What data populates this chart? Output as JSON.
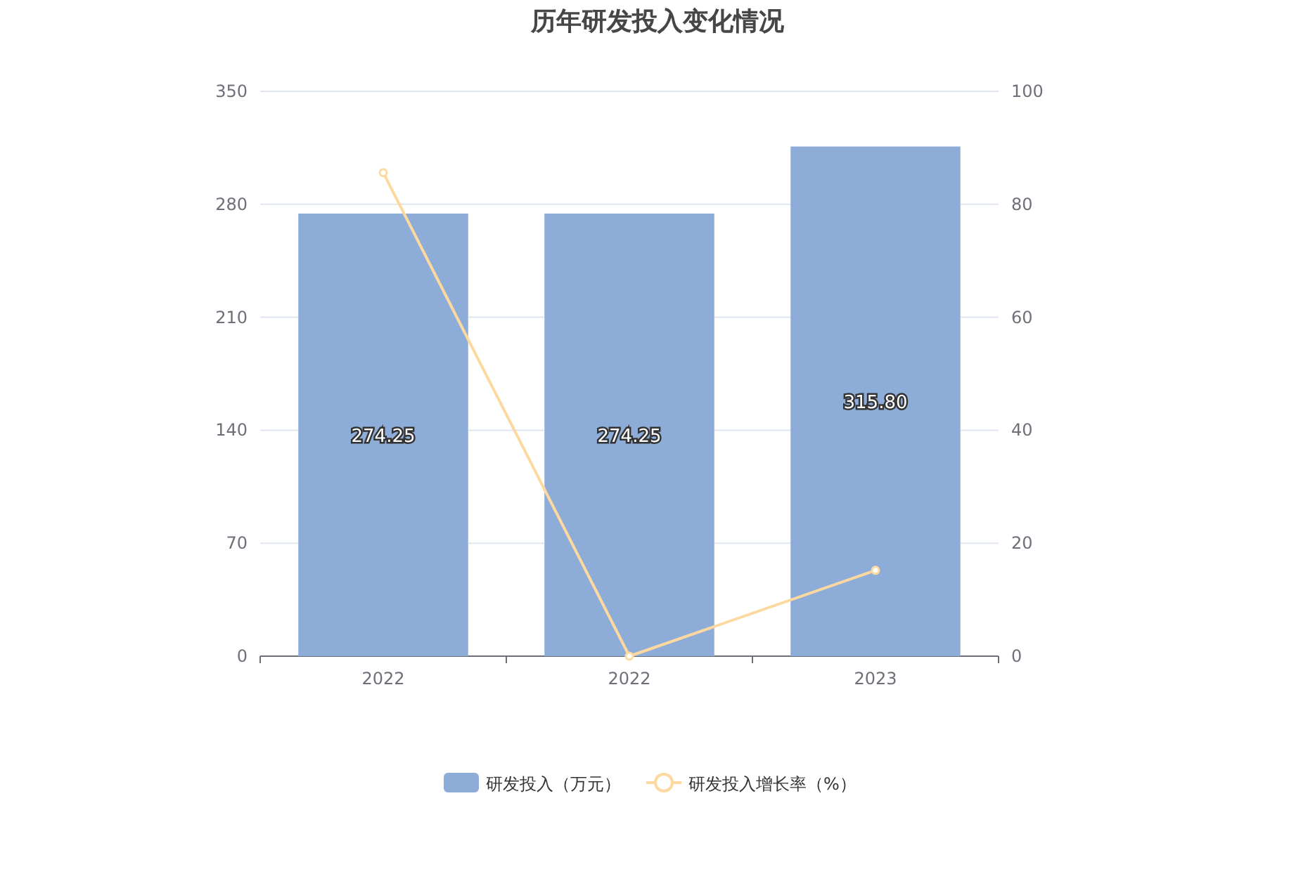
{
  "chart_data": {
    "type": "bar",
    "title": "历年研发投入变化情况",
    "categories": [
      "2022",
      "2022",
      "2023"
    ],
    "series": [
      {
        "name": "研发投入（万元）",
        "color": "#8eacd8",
        "values": [
          274.25,
          274.25,
          315.8
        ],
        "value_labels": [
          "274.25",
          "274.25",
          "315.80"
        ]
      },
      {
        "name": "研发投入增长率（%）",
        "type": "line",
        "axis": "y2",
        "color": "#fdd9a0",
        "values": [
          85.6,
          0,
          15.2
        ]
      }
    ],
    "ylim": [
      0,
      350
    ],
    "yticks": [
      0,
      70,
      140,
      210,
      280,
      350
    ],
    "y2lim": [
      0,
      100
    ],
    "y2ticks": [
      0,
      20,
      40,
      60,
      80,
      100
    ],
    "grid": "y",
    "legend": "bottom",
    "marker": "circle"
  }
}
